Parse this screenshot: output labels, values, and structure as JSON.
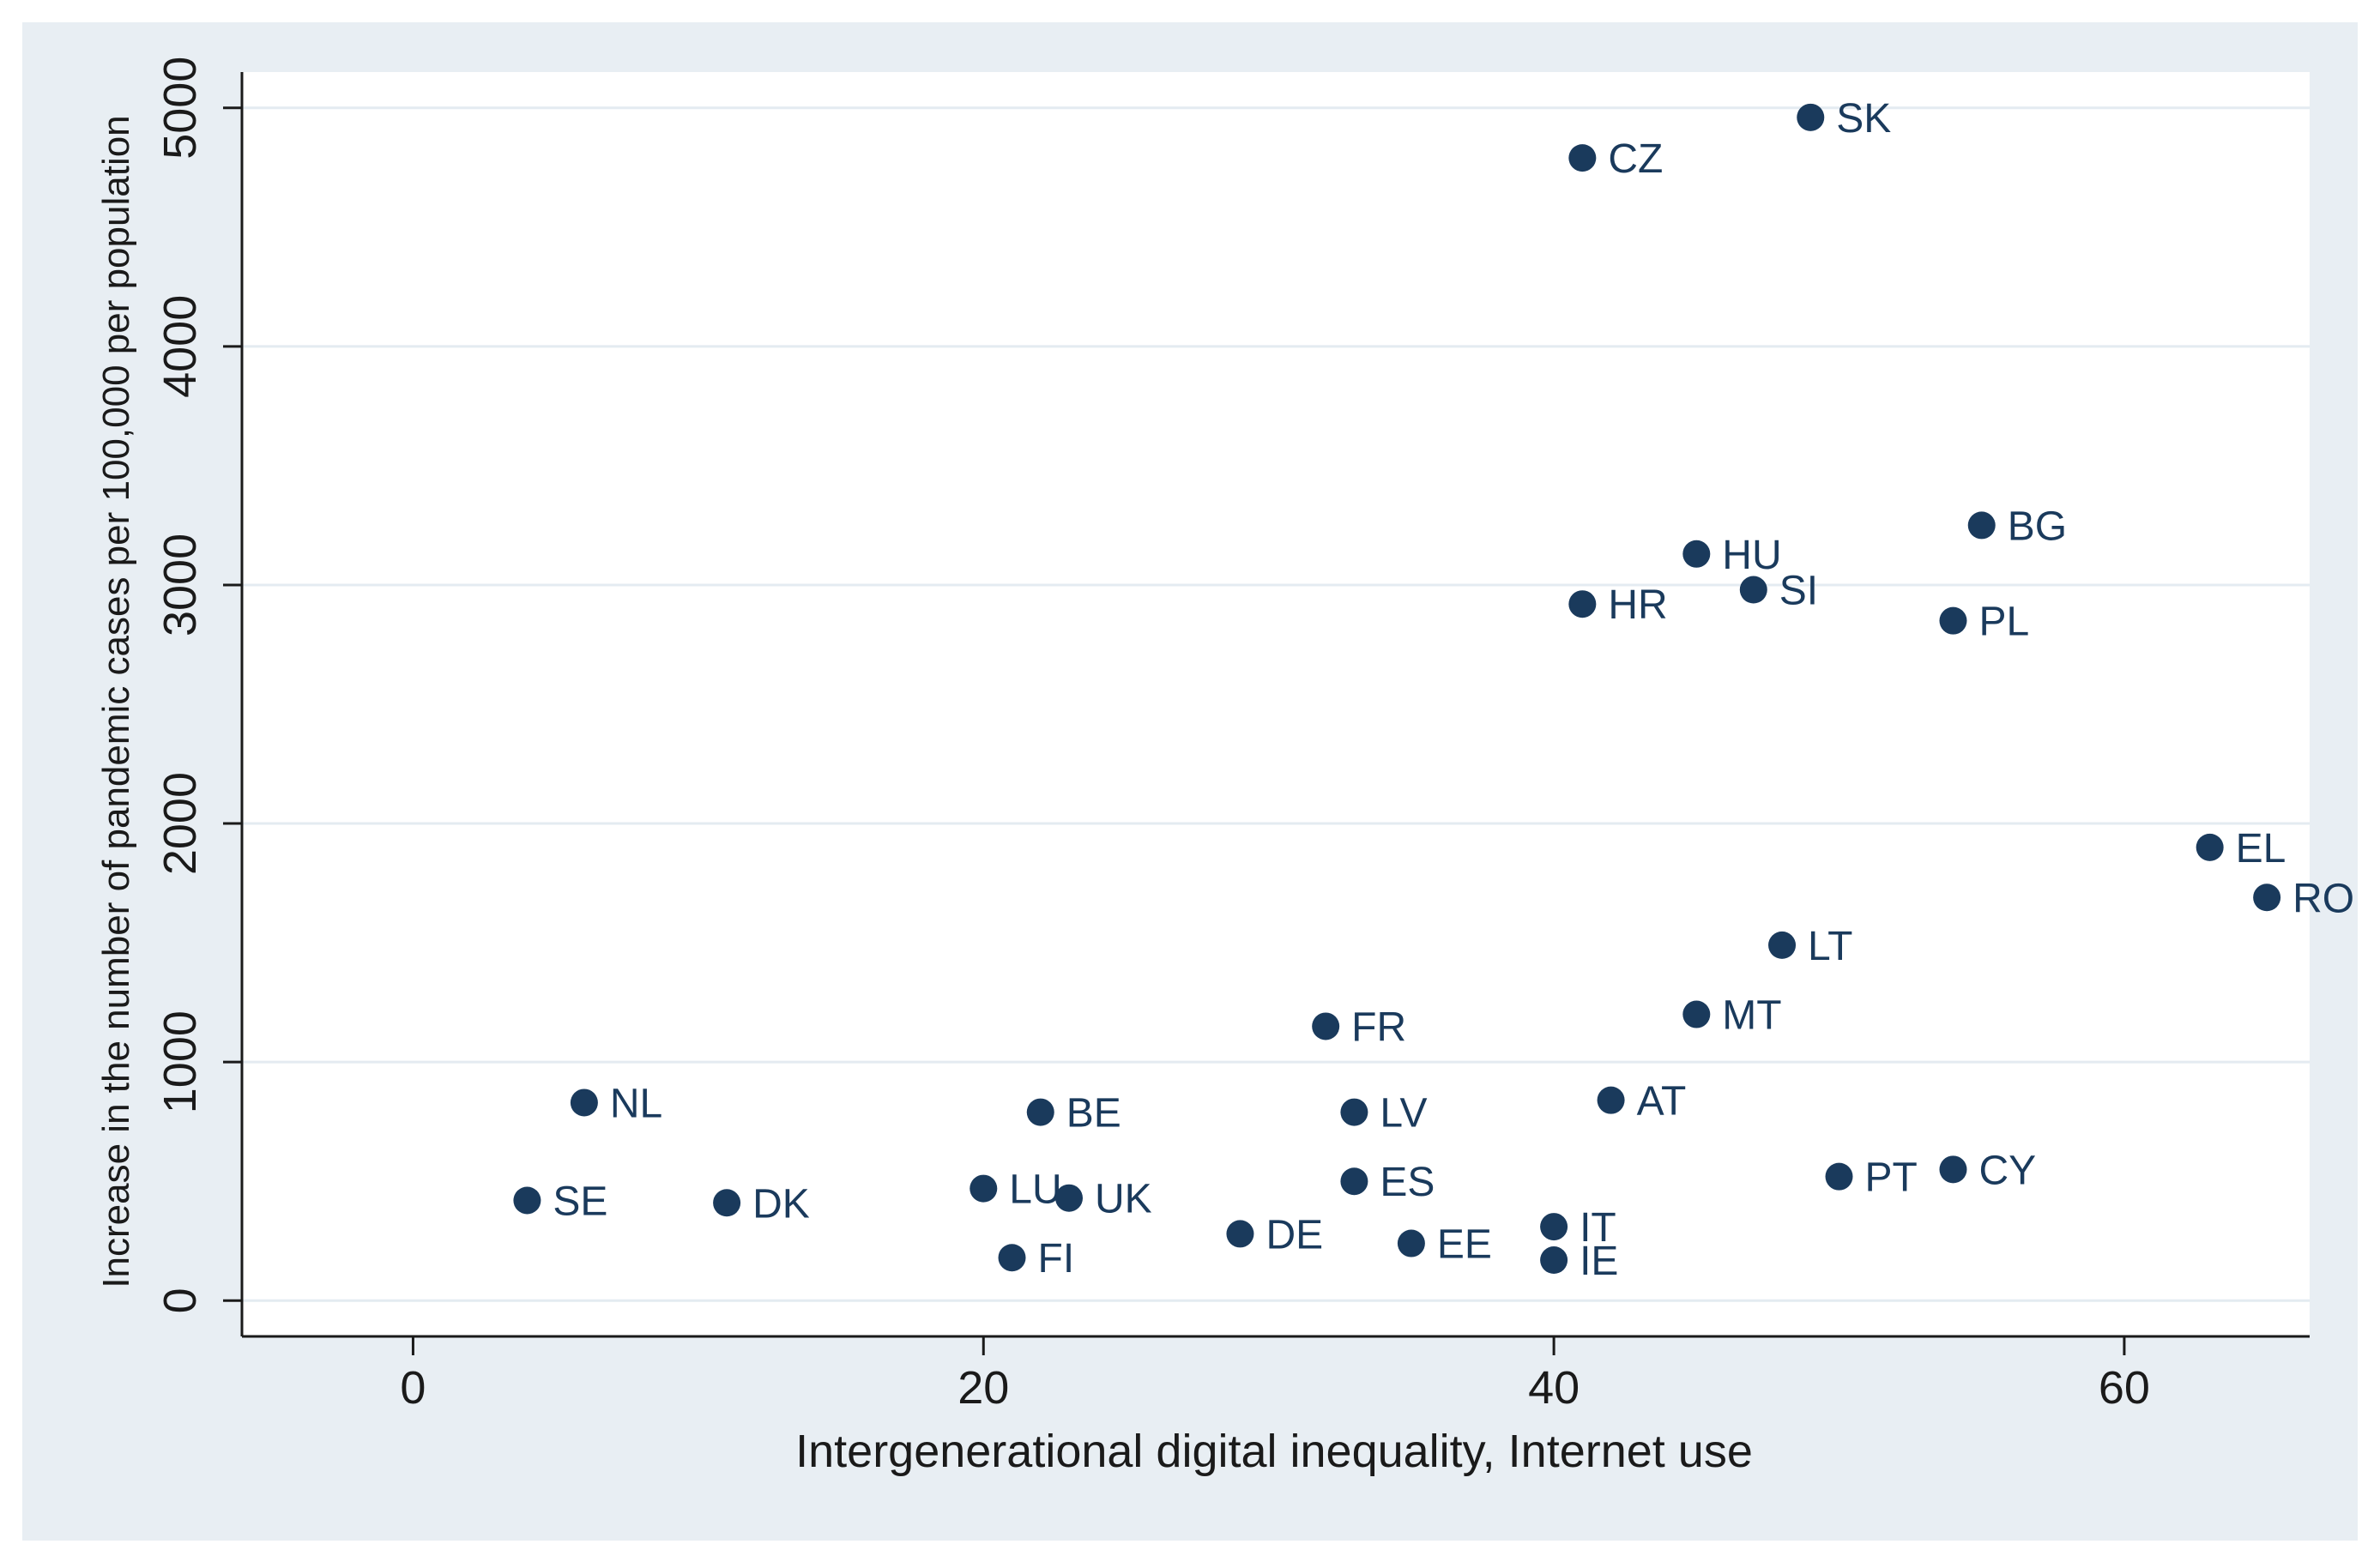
{
  "chart_data": {
    "type": "scatter",
    "title": "",
    "xlabel": "Intergenerational digital inequality, Internet use",
    "ylabel": "Increase in the number of pandemic cases per 100,000 per population",
    "xlim": [
      -6,
      66.5
    ],
    "ylim": [
      -150,
      5150
    ],
    "xticks": [
      0,
      20,
      40,
      60
    ],
    "yticks": [
      0,
      1000,
      2000,
      3000,
      4000,
      5000
    ],
    "grid": "horizontal",
    "marker_color": "#1a3a5c",
    "points": [
      {
        "label": "SK",
        "x": 49,
        "y": 4960
      },
      {
        "label": "CZ",
        "x": 41,
        "y": 4790
      },
      {
        "label": "BG",
        "x": 55,
        "y": 3250
      },
      {
        "label": "HU",
        "x": 45,
        "y": 3130
      },
      {
        "label": "SI",
        "x": 47,
        "y": 2980
      },
      {
        "label": "HR",
        "x": 41,
        "y": 2920
      },
      {
        "label": "PL",
        "x": 54,
        "y": 2850
      },
      {
        "label": "EL",
        "x": 63,
        "y": 1900
      },
      {
        "label": "RO",
        "x": 65,
        "y": 1690
      },
      {
        "label": "LT",
        "x": 48,
        "y": 1490
      },
      {
        "label": "MT",
        "x": 45,
        "y": 1200
      },
      {
        "label": "FR",
        "x": 32,
        "y": 1150
      },
      {
        "label": "AT",
        "x": 42,
        "y": 840
      },
      {
        "label": "NL",
        "x": 6,
        "y": 830
      },
      {
        "label": "BE",
        "x": 22,
        "y": 790
      },
      {
        "label": "LV",
        "x": 33,
        "y": 790
      },
      {
        "label": "CY",
        "x": 54,
        "y": 550
      },
      {
        "label": "PT",
        "x": 50,
        "y": 520
      },
      {
        "label": "ES",
        "x": 33,
        "y": 500
      },
      {
        "label": "LU",
        "x": 20,
        "y": 470
      },
      {
        "label": "UK",
        "x": 23,
        "y": 430
      },
      {
        "label": "SE",
        "x": 4,
        "y": 420
      },
      {
        "label": "DK",
        "x": 11,
        "y": 410
      },
      {
        "label": "IT",
        "x": 40,
        "y": 310
      },
      {
        "label": "DE",
        "x": 29,
        "y": 280
      },
      {
        "label": "EE",
        "x": 35,
        "y": 240
      },
      {
        "label": "FI",
        "x": 21,
        "y": 180
      },
      {
        "label": "IE",
        "x": 40,
        "y": 170
      }
    ]
  }
}
